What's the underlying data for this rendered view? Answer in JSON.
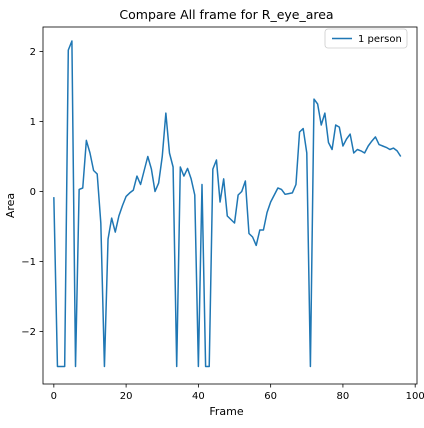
{
  "chart_data": {
    "type": "line",
    "title": "Compare All frame for R_eye_area",
    "xlabel": "Frame",
    "ylabel": "Area",
    "xlim": [
      -3,
      100.5
    ],
    "ylim": [
      -2.75,
      2.35
    ],
    "xticks": [
      0,
      20,
      40,
      60,
      80,
      100
    ],
    "yticks": [
      -2,
      -1,
      0,
      1,
      2
    ],
    "xtick_labels": [
      "0",
      "20",
      "40",
      "60",
      "80",
      "100"
    ],
    "ytick_labels": [
      "−2",
      "−1",
      "0",
      "1",
      "2"
    ],
    "grid": false,
    "legend_position": "top-right",
    "series": [
      {
        "name": "1 person",
        "color": "#1f77b4",
        "x": [
          0,
          1,
          2,
          3,
          4,
          5,
          6,
          7,
          8,
          9,
          10,
          11,
          12,
          13,
          14,
          15,
          16,
          17,
          18,
          19,
          20,
          21,
          22,
          23,
          24,
          25,
          26,
          27,
          28,
          29,
          30,
          31,
          32,
          33,
          34,
          35,
          36,
          37,
          38,
          39,
          40,
          41,
          42,
          43,
          44,
          45,
          46,
          47,
          48,
          49,
          50,
          51,
          52,
          53,
          54,
          55,
          56,
          57,
          58,
          59,
          60,
          61,
          62,
          63,
          64,
          65,
          66,
          67,
          68,
          69,
          70,
          71,
          72,
          73,
          74,
          75,
          76,
          77,
          78,
          79,
          80,
          81,
          82,
          83,
          84,
          85,
          86,
          87,
          88,
          89,
          90,
          91,
          92,
          93,
          94,
          95,
          96
        ],
        "y": [
          -0.08,
          -2.5,
          -2.5,
          -2.5,
          2.02,
          2.15,
          -2.5,
          0.03,
          0.05,
          0.73,
          0.55,
          0.3,
          0.25,
          -0.45,
          -2.5,
          -0.68,
          -0.38,
          -0.58,
          -0.35,
          -0.2,
          -0.07,
          -0.02,
          0.02,
          0.22,
          0.1,
          0.3,
          0.5,
          0.32,
          0.0,
          0.12,
          0.5,
          1.12,
          0.55,
          0.35,
          -2.5,
          0.35,
          0.22,
          0.33,
          0.18,
          -0.05,
          -2.5,
          0.1,
          -2.5,
          -2.5,
          0.32,
          0.45,
          -0.15,
          0.18,
          -0.35,
          -0.4,
          -0.45,
          -0.05,
          0.0,
          0.15,
          -0.6,
          -0.65,
          -0.77,
          -0.55,
          -0.55,
          -0.3,
          -0.15,
          -0.05,
          0.05,
          0.03,
          -0.04,
          -0.03,
          -0.02,
          0.1,
          0.85,
          0.9,
          0.55,
          -2.5,
          1.32,
          1.25,
          0.95,
          1.12,
          0.7,
          0.6,
          0.95,
          0.92,
          0.65,
          0.75,
          0.82,
          0.55,
          0.6,
          0.58,
          0.55,
          0.65,
          0.72,
          0.78,
          0.67,
          0.65,
          0.63,
          0.6,
          0.62,
          0.58,
          0.5
        ]
      }
    ]
  }
}
